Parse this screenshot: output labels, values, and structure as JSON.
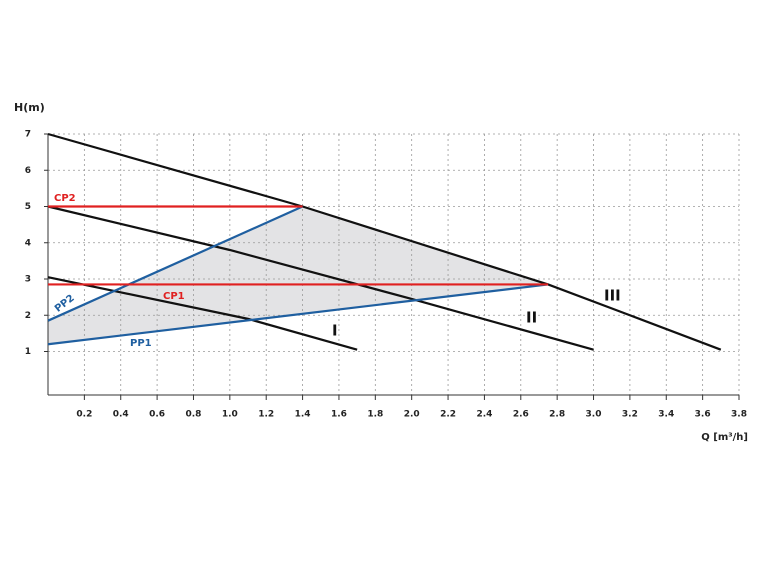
{
  "chart_data": {
    "type": "line",
    "y_label": "H(m)",
    "x_label": "Q [m³/h]",
    "xlim": [
      0,
      3.8
    ],
    "ylim": [
      -0.2,
      7
    ],
    "xticks": [
      0.2,
      0.4,
      0.6,
      0.8,
      {
        "value": 1,
        "label": "1.0"
      },
      1.2,
      1.4,
      1.6,
      1.8,
      {
        "value": 2,
        "label": "2.0"
      },
      2.2,
      2.4,
      2.6,
      2.8,
      {
        "value": 3,
        "label": "3.0"
      },
      3.2,
      3.4,
      3.6,
      3.8
    ],
    "yticks": [
      1,
      2,
      3,
      4,
      5,
      6,
      7
    ],
    "grid": true,
    "series": [
      {
        "name": "III",
        "color": "#111111",
        "x": [
          0,
          1.4,
          2.75,
          3.2,
          3.7
        ],
        "values": [
          7,
          5,
          2.85,
          2.0,
          1.05
        ]
      },
      {
        "name": "II",
        "color": "#111111",
        "x": [
          0,
          1,
          2,
          3
        ],
        "values": [
          5,
          3.8,
          2.45,
          1.05
        ]
      },
      {
        "name": "I",
        "color": "#111111",
        "x": [
          0,
          1.1,
          1.7
        ],
        "values": [
          3.05,
          1.9,
          1.05
        ]
      },
      {
        "name": "PP2",
        "color": "#1f5fa0",
        "x": [
          0,
          1.4
        ],
        "values": [
          1.85,
          5
        ]
      },
      {
        "name": "PP1",
        "color": "#1f5fa0",
        "x": [
          0,
          2.75
        ],
        "values": [
          1.2,
          2.85
        ]
      },
      {
        "name": "CP2",
        "color": "#e02020",
        "x": [
          0,
          1.4
        ],
        "values": [
          5,
          5
        ]
      },
      {
        "name": "CP1",
        "color": "#e02020",
        "x": [
          0,
          2.75
        ],
        "values": [
          2.85,
          2.85
        ]
      }
    ]
  }
}
